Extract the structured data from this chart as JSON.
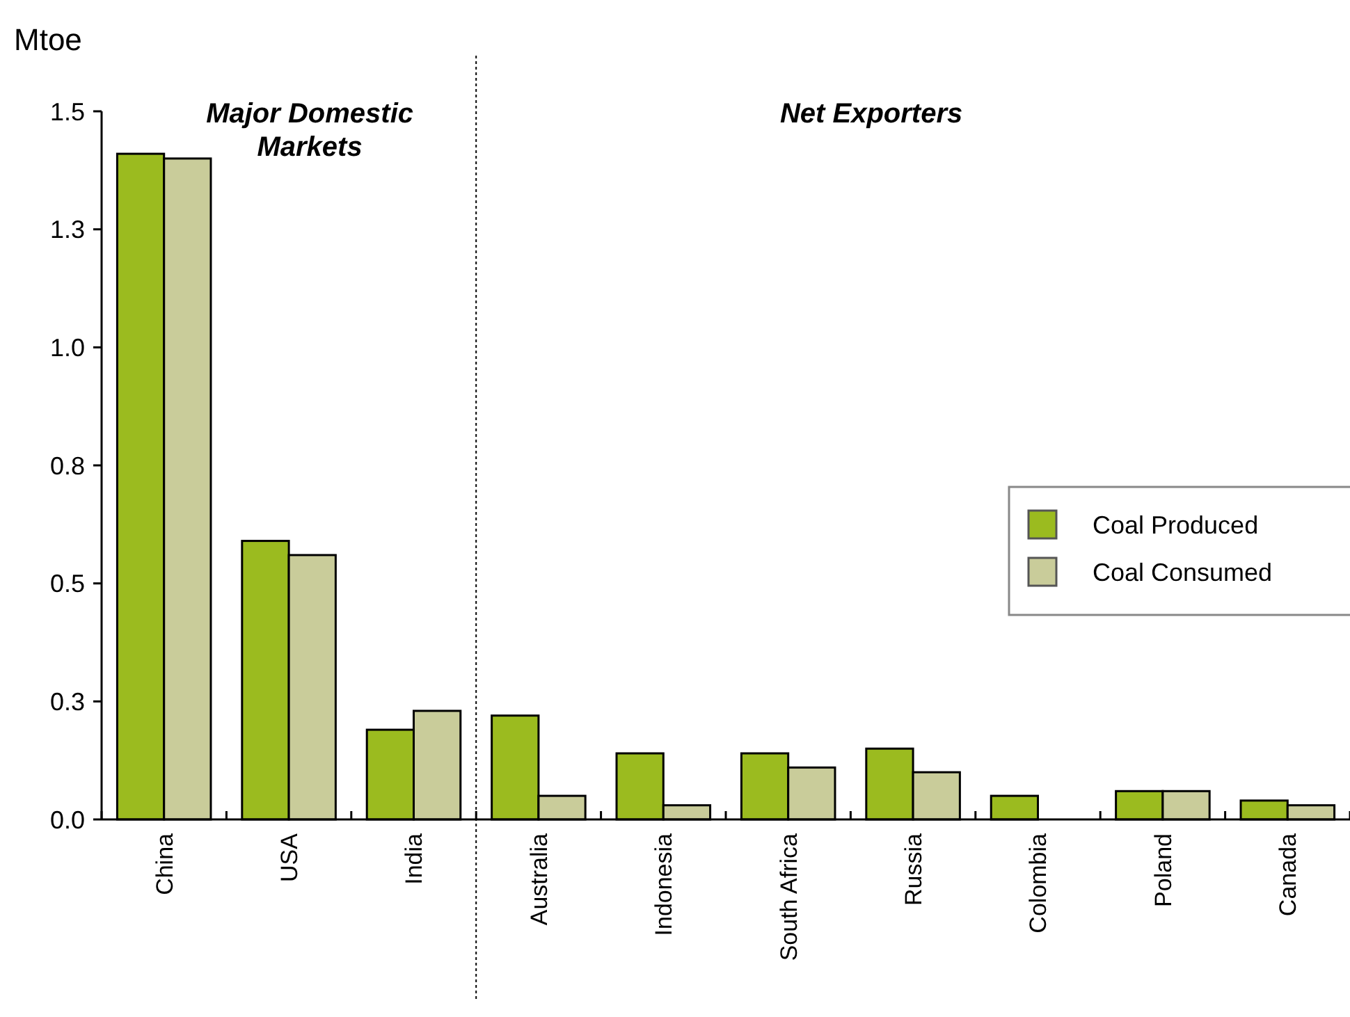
{
  "chart_data": {
    "type": "bar",
    "ylabel": "Mtoe",
    "categories": [
      "China",
      "USA",
      "India",
      "Australia",
      "Indonesia",
      "South Africa",
      "Russia",
      "Colombia",
      "Poland",
      "Canada"
    ],
    "series": [
      {
        "name": "Coal Produced",
        "color": "#9bbb1f",
        "values": [
          1.41,
          0.59,
          0.19,
          0.22,
          0.14,
          0.14,
          0.15,
          0.05,
          0.06,
          0.04
        ]
      },
      {
        "name": "Coal Consumed",
        "color": "#c9cc9a",
        "values": [
          1.4,
          0.56,
          0.23,
          0.05,
          0.03,
          0.11,
          0.1,
          null,
          0.06,
          0.03
        ]
      }
    ],
    "ylim": [
      0,
      1.5
    ],
    "yticks": [
      {
        "value": 0,
        "label": "0.0"
      },
      {
        "value": 0.25,
        "label": "0.3"
      },
      0.5,
      {
        "value": 0.75,
        "label": "0.8"
      },
      {
        "value": 1,
        "label": "1.0"
      },
      {
        "value": 1.25,
        "label": "1.3"
      },
      1.5
    ],
    "annotations": [
      "Major Domestic Markets",
      "Net Exporters"
    ],
    "grid": false,
    "legend": "right"
  }
}
